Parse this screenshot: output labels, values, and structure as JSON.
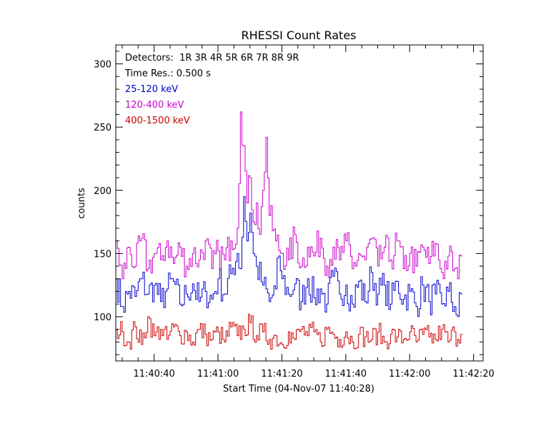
{
  "chart_data": {
    "type": "line",
    "title": "RHESSI Count Rates",
    "xlabel": "Start Time (04-Nov-07 11:40:28)",
    "ylabel": "counts",
    "x_start": "11:40:28",
    "time_resolution_s": 0.5,
    "xlim": [
      0,
      115
    ],
    "ylim": [
      65,
      315
    ],
    "x_ticks": [
      {
        "t": 12,
        "label": "11:40:40"
      },
      {
        "t": 32,
        "label": "11:41:00"
      },
      {
        "t": 52,
        "label": "11:41:20"
      },
      {
        "t": 72,
        "label": "11:41:40"
      },
      {
        "t": 92,
        "label": "11:42:00"
      },
      {
        "t": 112,
        "label": "11:42:20"
      }
    ],
    "y_ticks": [
      100,
      150,
      200,
      250,
      300
    ],
    "annotations": {
      "detectors": "Detectors:  1R 3R 4R 5R 6R 7R 8R 9R",
      "time_res": "Time Res.: 0.500 s"
    },
    "legend_position": "top-left",
    "series": [
      {
        "name": "25-120 keV",
        "color": "#0000cc",
        "anchors": [
          [
            0,
            130
          ],
          [
            2,
            108
          ],
          [
            4,
            120
          ],
          [
            6,
            116
          ],
          [
            8,
            130
          ],
          [
            10,
            118
          ],
          [
            12,
            125
          ],
          [
            14,
            112
          ],
          [
            16,
            122
          ],
          [
            18,
            128
          ],
          [
            20,
            110
          ],
          [
            22,
            118
          ],
          [
            24,
            126
          ],
          [
            26,
            112
          ],
          [
            28,
            120
          ],
          [
            30,
            114
          ],
          [
            32,
            130
          ],
          [
            34,
            118
          ],
          [
            36,
            134
          ],
          [
            38,
            150
          ],
          [
            39,
            138
          ],
          [
            40,
            195
          ],
          [
            41,
            160
          ],
          [
            42,
            182
          ],
          [
            43,
            150
          ],
          [
            44,
            140
          ],
          [
            46,
            125
          ],
          [
            48,
            112
          ],
          [
            50,
            122
          ],
          [
            51,
            148
          ],
          [
            52,
            130
          ],
          [
            54,
            118
          ],
          [
            56,
            126
          ],
          [
            58,
            112
          ],
          [
            60,
            130
          ],
          [
            62,
            115
          ],
          [
            64,
            122
          ],
          [
            66,
            110
          ],
          [
            68,
            132
          ],
          [
            70,
            118
          ],
          [
            72,
            125
          ],
          [
            74,
            110
          ],
          [
            76,
            128
          ],
          [
            78,
            112
          ],
          [
            80,
            135
          ],
          [
            82,
            118
          ],
          [
            84,
            125
          ],
          [
            86,
            110
          ],
          [
            88,
            128
          ],
          [
            90,
            114
          ],
          [
            92,
            120
          ],
          [
            94,
            108
          ],
          [
            96,
            125
          ],
          [
            98,
            112
          ],
          [
            100,
            118
          ],
          [
            102,
            110
          ],
          [
            104,
            120
          ],
          [
            106,
            108
          ],
          [
            107,
            100
          ],
          [
            108,
            118
          ]
        ]
      },
      {
        "name": "120-400 keV",
        "color": "#cc00cc",
        "anchors": [
          [
            0,
            160
          ],
          [
            2,
            130
          ],
          [
            4,
            155
          ],
          [
            6,
            140
          ],
          [
            8,
            162
          ],
          [
            10,
            138
          ],
          [
            12,
            150
          ],
          [
            14,
            145
          ],
          [
            16,
            160
          ],
          [
            18,
            142
          ],
          [
            20,
            155
          ],
          [
            22,
            140
          ],
          [
            24,
            150
          ],
          [
            26,
            145
          ],
          [
            28,
            160
          ],
          [
            30,
            138
          ],
          [
            32,
            152
          ],
          [
            34,
            145
          ],
          [
            36,
            160
          ],
          [
            38,
            170
          ],
          [
            39,
            262
          ],
          [
            40,
            235
          ],
          [
            41,
            190
          ],
          [
            42,
            210
          ],
          [
            43,
            175
          ],
          [
            44,
            190
          ],
          [
            45,
            165
          ],
          [
            46,
            200
          ],
          [
            47,
            242
          ],
          [
            48,
            180
          ],
          [
            50,
            160
          ],
          [
            52,
            150
          ],
          [
            54,
            145
          ],
          [
            56,
            165
          ],
          [
            58,
            140
          ],
          [
            60,
            155
          ],
          [
            62,
            148
          ],
          [
            64,
            162
          ],
          [
            66,
            140
          ],
          [
            68,
            155
          ],
          [
            70,
            145
          ],
          [
            72,
            160
          ],
          [
            74,
            138
          ],
          [
            76,
            150
          ],
          [
            78,
            145
          ],
          [
            80,
            162
          ],
          [
            82,
            140
          ],
          [
            84,
            155
          ],
          [
            86,
            145
          ],
          [
            88,
            160
          ],
          [
            90,
            138
          ],
          [
            92,
            150
          ],
          [
            94,
            140
          ],
          [
            96,
            155
          ],
          [
            98,
            142
          ],
          [
            100,
            158
          ],
          [
            102,
            135
          ],
          [
            104,
            148
          ],
          [
            106,
            138
          ],
          [
            107,
            130
          ],
          [
            108,
            148
          ]
        ]
      },
      {
        "name": "400-1500 keV",
        "color": "#cc0000",
        "anchors": [
          [
            0,
            90
          ],
          [
            2,
            88
          ],
          [
            4,
            80
          ],
          [
            6,
            92
          ],
          [
            8,
            78
          ],
          [
            10,
            100
          ],
          [
            12,
            85
          ],
          [
            14,
            90
          ],
          [
            16,
            82
          ],
          [
            18,
            92
          ],
          [
            20,
            85
          ],
          [
            22,
            88
          ],
          [
            24,
            80
          ],
          [
            26,
            90
          ],
          [
            28,
            86
          ],
          [
            30,
            82
          ],
          [
            32,
            88
          ],
          [
            34,
            80
          ],
          [
            36,
            92
          ],
          [
            38,
            85
          ],
          [
            40,
            90
          ],
          [
            42,
            95
          ],
          [
            44,
            85
          ],
          [
            46,
            88
          ],
          [
            48,
            82
          ],
          [
            50,
            85
          ],
          [
            52,
            78
          ],
          [
            54,
            88
          ],
          [
            56,
            82
          ],
          [
            58,
            90
          ],
          [
            60,
            85
          ],
          [
            62,
            88
          ],
          [
            64,
            80
          ],
          [
            66,
            90
          ],
          [
            68,
            86
          ],
          [
            70,
            82
          ],
          [
            72,
            88
          ],
          [
            74,
            80
          ],
          [
            76,
            86
          ],
          [
            78,
            84
          ],
          [
            80,
            82
          ],
          [
            82,
            88
          ],
          [
            84,
            80
          ],
          [
            86,
            86
          ],
          [
            88,
            84
          ],
          [
            90,
            82
          ],
          [
            92,
            88
          ],
          [
            94,
            80
          ],
          [
            96,
            86
          ],
          [
            98,
            84
          ],
          [
            100,
            82
          ],
          [
            102,
            90
          ],
          [
            104,
            80
          ],
          [
            106,
            88
          ],
          [
            107,
            82
          ],
          [
            108,
            86
          ]
        ]
      }
    ]
  }
}
